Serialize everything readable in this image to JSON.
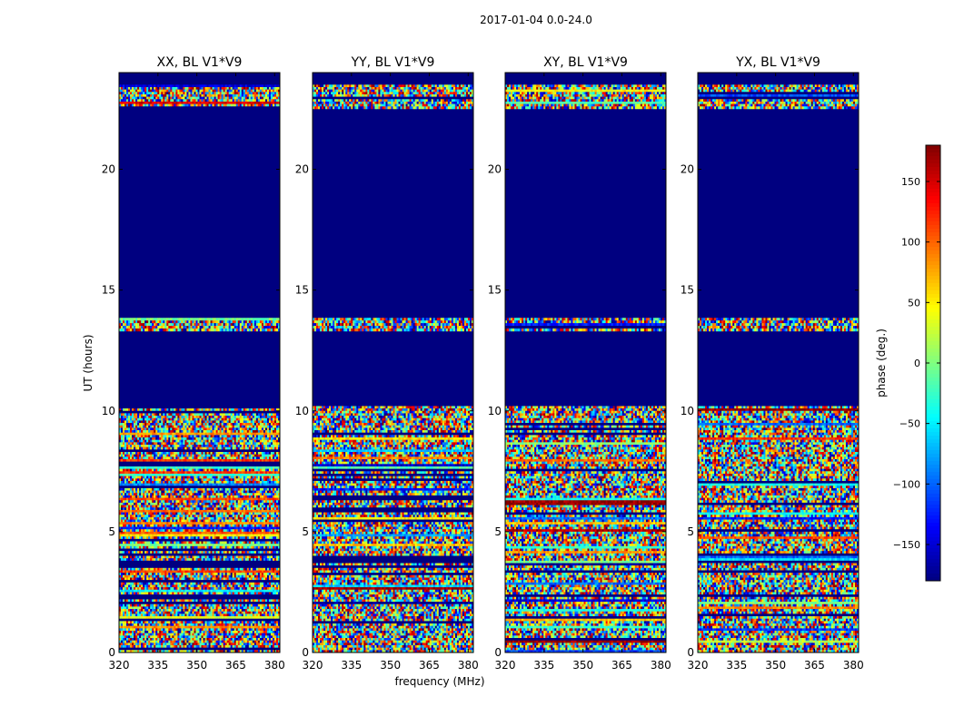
{
  "suptitle": "2017-01-04 0.0-24.0",
  "chart_data": {
    "type": "heatmap",
    "ylabel": "UT (hours)",
    "xlabel": "frequency (MHz)",
    "xlim": [
      320,
      382
    ],
    "ylim": [
      0,
      24
    ],
    "x_ticks": [
      320,
      335,
      350,
      365,
      380
    ],
    "y_ticks": [
      0,
      5,
      10,
      15,
      20
    ],
    "panels": [
      {
        "title": "XX, BL V1*V9",
        "pol": "XX"
      },
      {
        "title": "YY, BL V1*V9",
        "pol": "YY"
      },
      {
        "title": "XY, BL V1*V9",
        "pol": "XY"
      },
      {
        "title": "YX, BL V1*V9",
        "pol": "YX"
      }
    ],
    "colorbar": {
      "label": "phase (deg.)",
      "range": [
        -180,
        180
      ],
      "ticks": [
        150,
        100,
        50,
        0,
        -50,
        -100,
        -150
      ],
      "colormap": "jet",
      "colors": [
        "#00007f",
        "#0000ff",
        "#007fff",
        "#00ffff",
        "#7fff7f",
        "#ffff00",
        "#ff7f00",
        "#ff0000",
        "#7f0000"
      ]
    },
    "data_segments_ut_hours": [
      [
        0.0,
        10.2
      ],
      [
        13.3,
        13.85
      ],
      [
        22.5,
        23.5
      ]
    ],
    "masked_value_deg": -180,
    "cell_value_sample": "random phase noise in [-180, 180] within data segments; masked (blue) elsewhere"
  }
}
